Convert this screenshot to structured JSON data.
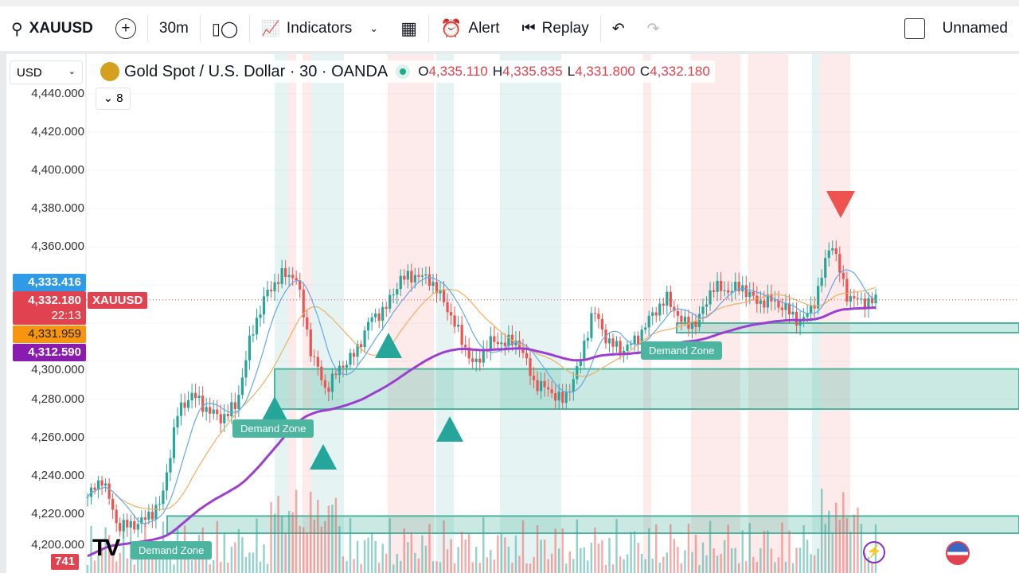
{
  "toolbar": {
    "symbol": "XAUUSD",
    "interval": "30m",
    "indicators": "Indicators",
    "alert": "Alert",
    "replay": "Replay",
    "layout_name": "Unnamed"
  },
  "legend": {
    "title": "Gold Spot / U.S. Dollar · 30 · OANDA",
    "o_label": "O",
    "o": "4,335.110",
    "h_label": "H",
    "h": "4,335.835",
    "l_label": "L",
    "l": "4,331.800",
    "c_label": "C",
    "c": "4,332.180",
    "indicators_count": "8"
  },
  "currency": "USD",
  "axis_ticks": [
    "4,440.000",
    "4,420.000",
    "4,400.000",
    "4,380.000",
    "4,360.000",
    "4,300.000",
    "4,280.000",
    "4,260.000",
    "4,240.000",
    "4,220.000",
    "4,200.000"
  ],
  "price_labels": {
    "blue": "4,333.416",
    "current": "4,332.180",
    "countdown": "22:13",
    "symbol_tag": "XAUUSD",
    "orange": "4,331.959",
    "purple": "4,312.590",
    "volume": "741"
  },
  "zones": [
    {
      "label": "Demand Zone",
      "low": 4275,
      "high": 4296
    },
    {
      "label": "Demand Zone",
      "low": 4315,
      "high": 4320
    },
    {
      "label": "Demand Zone",
      "low": 4210,
      "high": 4219
    }
  ],
  "colors": {
    "up": "#26a69a",
    "down": "#ef5350",
    "zone": "#4cb5a0",
    "ema_long": "#9c3fd0",
    "ma_fast": "#64a8e8",
    "ma_slow": "#f0b060",
    "current": "#e0434f"
  },
  "price_path": [
    4229,
    4239,
    4214,
    4214,
    4218,
    4227,
    4272,
    4283,
    4275,
    4270,
    4277,
    4314,
    4335,
    4345,
    4345,
    4306,
    4285,
    4297,
    4304,
    4322,
    4327,
    4343,
    4345,
    4343,
    4331,
    4314,
    4297,
    4310,
    4310,
    4310,
    4289,
    4285,
    4279,
    4297,
    4327,
    4310,
    4306,
    4312,
    4325,
    4333,
    4320,
    4320,
    4339,
    4337,
    4339,
    4331,
    4332,
    4327,
    4320,
    4333,
    4364,
    4335,
    4331,
    4332
  ]
}
